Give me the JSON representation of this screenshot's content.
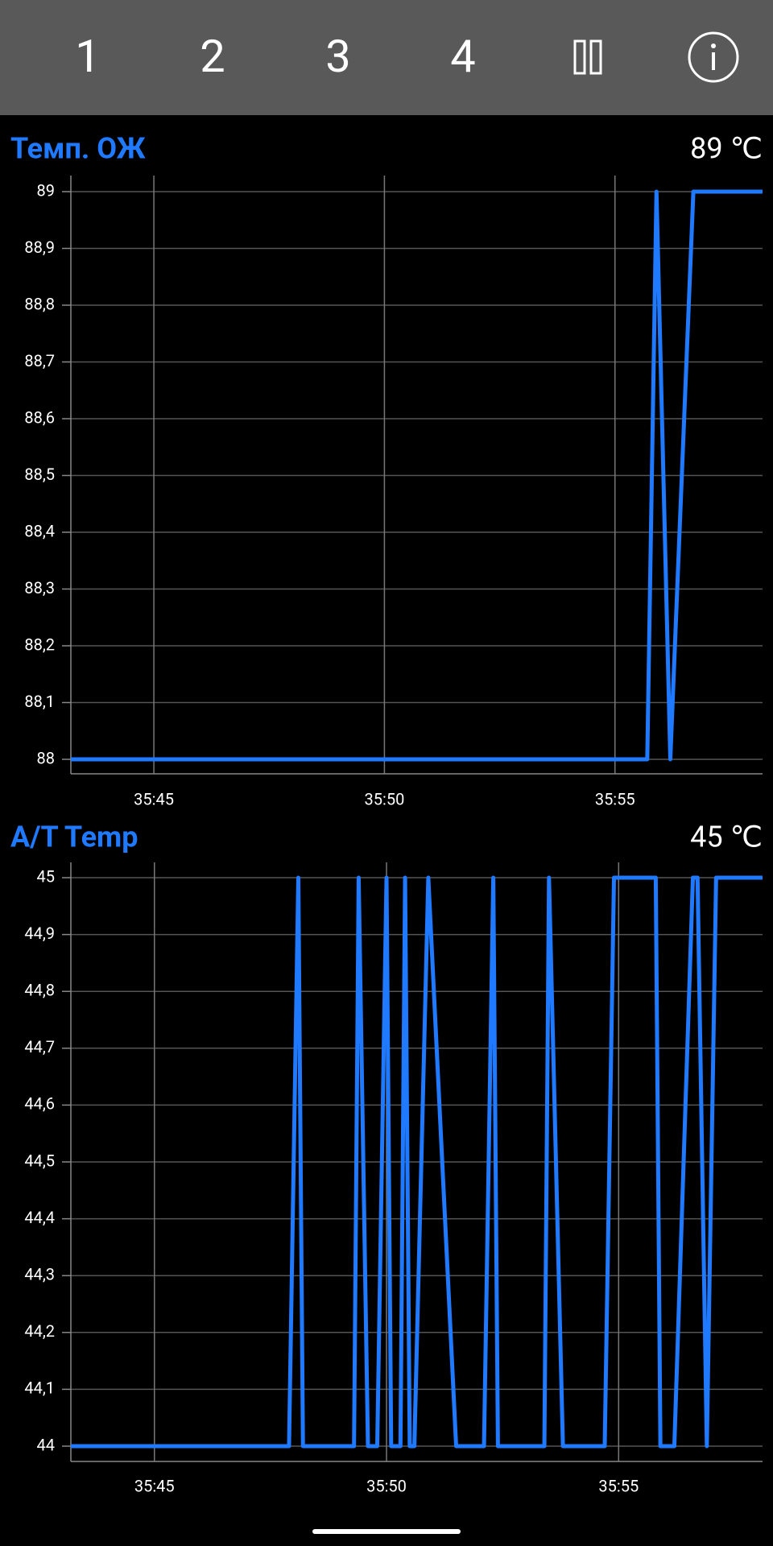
{
  "toolbar": {
    "buttons": [
      "1",
      "2",
      "3",
      "4"
    ]
  },
  "chart_data": [
    {
      "type": "line",
      "title": "Темп. ОЖ",
      "current": "89 ℃",
      "color": "#1f7aff",
      "grid": true,
      "x": [
        2143.2,
        2155.7,
        2155.9,
        2156.2,
        2156.7,
        2158.2
      ],
      "values": [
        88,
        88,
        89,
        88,
        89,
        89
      ],
      "xlim": [
        2143.2,
        2158.2
      ],
      "xticks": [
        {
          "value": 2145,
          "label": "35:45"
        },
        {
          "value": 2150,
          "label": "35:50"
        },
        {
          "value": 2155,
          "label": "35:55"
        }
      ],
      "ylim": [
        88,
        89
      ],
      "yticks": [
        88,
        {
          "value": 88.1,
          "label": "88,1"
        },
        {
          "value": 88.2,
          "label": "88,2"
        },
        {
          "value": 88.3,
          "label": "88,3"
        },
        {
          "value": 88.4,
          "label": "88,4"
        },
        {
          "value": 88.5,
          "label": "88,5"
        },
        {
          "value": 88.6,
          "label": "88,6"
        },
        {
          "value": 88.7,
          "label": "88,7"
        },
        {
          "value": 88.8,
          "label": "88,8"
        },
        {
          "value": 88.9,
          "label": "88,9"
        },
        89
      ]
    },
    {
      "type": "line",
      "title": "A/T Temp",
      "current": "45 ℃",
      "color": "#1f7aff",
      "grid": true,
      "x": [
        2143.2,
        2147.9,
        2148.1,
        2148.2,
        2149.3,
        2149.4,
        2149.6,
        2149.8,
        2150.0,
        2150.1,
        2150.3,
        2150.4,
        2150.5,
        2150.6,
        2150.9,
        2151.5,
        2152.1,
        2152.3,
        2152.4,
        2153.4,
        2153.5,
        2153.8,
        2154.7,
        2154.9,
        2155.8,
        2155.9,
        2156.2,
        2156.6,
        2156.7,
        2156.9,
        2157.1,
        2158.1
      ],
      "values": [
        44,
        44,
        45,
        44,
        44,
        45,
        44,
        44,
        45,
        44,
        44,
        45,
        44,
        44,
        45,
        44,
        44,
        45,
        44,
        44,
        45,
        44,
        44,
        45,
        45,
        44,
        44,
        45,
        45,
        44,
        45,
        45
      ],
      "xlim": [
        2143.2,
        2158.1
      ],
      "xticks": [
        {
          "value": 2145,
          "label": "35:45"
        },
        {
          "value": 2150,
          "label": "35:50"
        },
        {
          "value": 2155,
          "label": "35:55"
        }
      ],
      "ylim": [
        44,
        45
      ],
      "yticks": [
        44,
        {
          "value": 44.1,
          "label": "44,1"
        },
        {
          "value": 44.2,
          "label": "44,2"
        },
        {
          "value": 44.3,
          "label": "44,3"
        },
        {
          "value": 44.4,
          "label": "44,4"
        },
        {
          "value": 44.5,
          "label": "44,5"
        },
        {
          "value": 44.6,
          "label": "44,6"
        },
        {
          "value": 44.7,
          "label": "44,7"
        },
        {
          "value": 44.8,
          "label": "44,8"
        },
        {
          "value": 44.9,
          "label": "44,9"
        },
        45
      ]
    }
  ]
}
